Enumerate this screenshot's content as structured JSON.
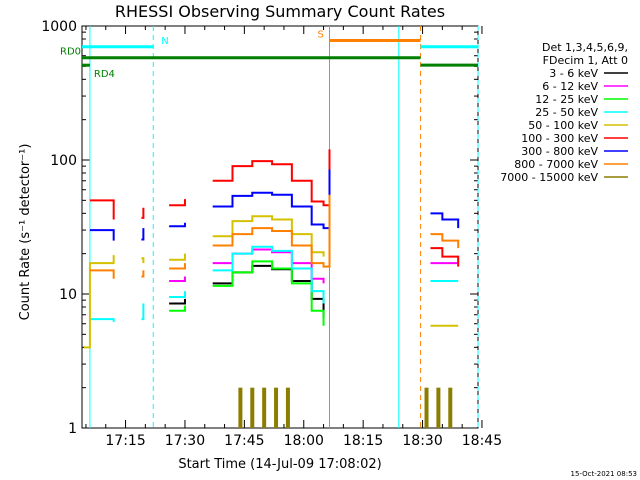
{
  "chart_data": {
    "type": "line",
    "title": "RHESSI Observing Summary Count Rates",
    "xlabel": "Start Time (14-Jul-09 17:08:02)",
    "ylabel": "Count Rate (s⁻¹ detector⁻¹)",
    "y_scale": "log",
    "ylim": [
      1,
      1000
    ],
    "xlim_minutes": [
      2,
      102
    ],
    "x_tick_labels": [
      "17:15",
      "17:30",
      "17:45",
      "18:00",
      "18:15",
      "18:30",
      "18:45"
    ],
    "y_tick_labels": [
      "1",
      "10",
      "100",
      "1000"
    ],
    "legend_header": [
      "Det 1,3,4,5,6,9,",
      "FDecim 1, Att 0"
    ],
    "series": [
      {
        "name": "3 - 6 keV",
        "color": "#000000",
        "points": [
          [
            17.5,
            7.6
          ],
          [
            24,
            8.5
          ],
          [
            28,
            9.2
          ],
          [
            35,
            12.0
          ],
          [
            40,
            14.5
          ],
          [
            45,
            16.2
          ],
          [
            50,
            15.3
          ],
          [
            55,
            12.5
          ],
          [
            60,
            9.2
          ],
          [
            63,
            6.6
          ]
        ]
      },
      {
        "name": "6 - 12 keV",
        "color": "#ff00ff",
        "points": [
          [
            17.5,
            11.5
          ],
          [
            24,
            12.5
          ],
          [
            28,
            13.5
          ],
          [
            35,
            17.0
          ],
          [
            40,
            20.0
          ],
          [
            45,
            21.5
          ],
          [
            50,
            20.5
          ],
          [
            55,
            17.0
          ],
          [
            60,
            13.0
          ],
          [
            63,
            12.0
          ],
          [
            90,
            17.0
          ],
          [
            93,
            17.0
          ],
          [
            97,
            17.0
          ]
        ]
      },
      {
        "name": "12 - 25 keV",
        "color": "#00ff00",
        "points": [
          [
            17.5,
            6.6
          ],
          [
            24,
            7.5
          ],
          [
            28,
            8.2
          ],
          [
            35,
            11.5
          ],
          [
            40,
            14.5
          ],
          [
            45,
            17.5
          ],
          [
            50,
            15.5
          ],
          [
            55,
            12.0
          ],
          [
            60,
            7.5
          ],
          [
            63,
            5.8
          ]
        ]
      },
      {
        "name": "25 - 50 keV",
        "color": "#00ffff",
        "points": [
          [
            4,
            6.5
          ],
          [
            10,
            6.2
          ],
          [
            17,
            6.5
          ],
          [
            17.5,
            8.5
          ],
          [
            24,
            9.5
          ],
          [
            28,
            10.5
          ],
          [
            35,
            15.0
          ],
          [
            40,
            20.0
          ],
          [
            45,
            22.5
          ],
          [
            50,
            21.0
          ],
          [
            55,
            15.5
          ],
          [
            60,
            10.5
          ],
          [
            63,
            8.5
          ],
          [
            90,
            12.5
          ],
          [
            93,
            12.5
          ],
          [
            97,
            12.5
          ]
        ]
      },
      {
        "name": "50 - 100 keV",
        "color": "#d4c100",
        "points": [
          [
            2.5,
            4.0
          ],
          [
            4,
            17.0
          ],
          [
            10,
            19.5
          ],
          [
            17,
            18.5
          ],
          [
            17.5,
            17.0
          ],
          [
            24,
            18.0
          ],
          [
            28,
            20.0
          ],
          [
            35,
            27.0
          ],
          [
            40,
            35.0
          ],
          [
            45,
            38.0
          ],
          [
            50,
            36.0
          ],
          [
            55,
            28.0
          ],
          [
            60,
            20.5
          ],
          [
            63,
            19.0
          ],
          [
            90,
            5.8
          ],
          [
            93,
            5.8
          ],
          [
            97,
            5.8
          ]
        ]
      },
      {
        "name": "100 - 300 keV",
        "color": "#ff0000",
        "points": [
          [
            4,
            50.0
          ],
          [
            10,
            36.0
          ],
          [
            17,
            37.0
          ],
          [
            17.5,
            44.0
          ],
          [
            24,
            46.0
          ],
          [
            28,
            51.0
          ],
          [
            35,
            70.0
          ],
          [
            40,
            90.0
          ],
          [
            45,
            98.0
          ],
          [
            50,
            93.0
          ],
          [
            55,
            70.0
          ],
          [
            60,
            49.0
          ],
          [
            63,
            46.0
          ],
          [
            64.5,
            120.0
          ],
          [
            90,
            22.0
          ],
          [
            93,
            19.0
          ],
          [
            97,
            16.0
          ]
        ]
      },
      {
        "name": "300 - 800 keV",
        "color": "#0000ff",
        "points": [
          [
            4,
            30.0
          ],
          [
            10,
            25.0
          ],
          [
            17,
            25.5
          ],
          [
            17.5,
            31.0
          ],
          [
            24,
            32.0
          ],
          [
            28,
            34.0
          ],
          [
            35,
            45.0
          ],
          [
            40,
            54.0
          ],
          [
            45,
            57.0
          ],
          [
            50,
            55.0
          ],
          [
            55,
            45.0
          ],
          [
            60,
            33.0
          ],
          [
            63,
            31.0
          ],
          [
            64.5,
            85.0
          ],
          [
            90,
            40.0
          ],
          [
            93,
            36.0
          ],
          [
            97,
            31.0
          ]
        ]
      },
      {
        "name": "800 - 7000 keV",
        "color": "#ff8000",
        "points": [
          [
            4,
            15.0
          ],
          [
            10,
            13.0
          ],
          [
            17,
            13.5
          ],
          [
            17.5,
            15.0
          ],
          [
            24,
            15.5
          ],
          [
            28,
            17.0
          ],
          [
            35,
            23.0
          ],
          [
            40,
            28.0
          ],
          [
            45,
            31.0
          ],
          [
            50,
            29.5
          ],
          [
            55,
            23.0
          ],
          [
            60,
            17.0
          ],
          [
            63,
            16.0
          ],
          [
            64.5,
            55.0
          ],
          [
            90,
            28.0
          ],
          [
            93,
            25.0
          ],
          [
            97,
            22.0
          ]
        ]
      },
      {
        "name": "7000 - 15000 keV",
        "color": "#8b7d00",
        "points": [
          [
            42,
            2.0
          ],
          [
            45,
            2.0
          ],
          [
            48,
            2.0
          ],
          [
            51,
            2.0
          ],
          [
            54,
            2.0
          ],
          [
            89,
            2.0
          ],
          [
            92,
            2.0
          ],
          [
            95,
            2.0
          ]
        ]
      }
    ],
    "flag_bars": [
      {
        "label": "N",
        "color": "#00ffff",
        "level": 700,
        "segments": [
          [
            2,
            20
          ],
          [
            87.5,
            102
          ]
        ]
      },
      {
        "label": "S",
        "color": "#ff8000",
        "level": 780,
        "segments": [
          [
            64.5,
            87.5
          ]
        ]
      },
      {
        "label": "RD0",
        "color": "#007f00",
        "level": 580,
        "segments": [
          [
            2,
            87.5
          ]
        ]
      },
      {
        "label": "RD4",
        "color": "#007f00",
        "level": 510,
        "segments": [
          [
            2,
            4
          ],
          [
            87.5,
            102
          ]
        ]
      }
    ],
    "vertical_markers": [
      {
        "x": 4,
        "color": "#00ffff",
        "style": "solid"
      },
      {
        "x": 20,
        "color": "#00ffff",
        "style": "dashed"
      },
      {
        "x": 64.5,
        "color": "#ff8000",
        "style": "solid"
      },
      {
        "x": 82,
        "color": "#00ffff",
        "style": "solid"
      },
      {
        "x": 87.5,
        "color": "#ff8000",
        "style": "dashed"
      },
      {
        "x": 102,
        "color": "#00ffff",
        "style": "dashed"
      }
    ],
    "grid": false,
    "legend_position": "right"
  },
  "timestamp": "15-Oct-2021 08:53"
}
